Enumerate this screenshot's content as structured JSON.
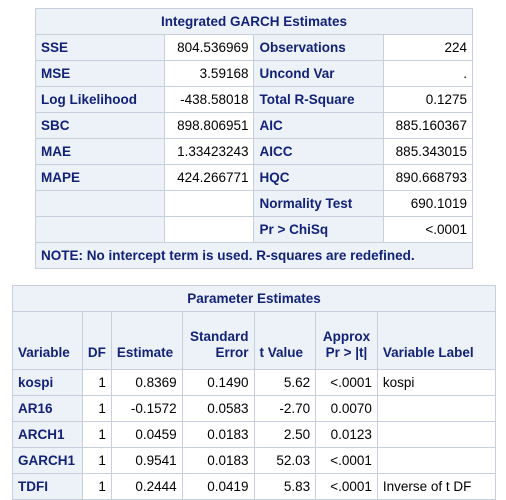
{
  "garch": {
    "title": "Integrated GARCH Estimates",
    "rows": [
      {
        "l1": "SSE",
        "v1": "804.536969",
        "l2": "Observations",
        "v2": "224"
      },
      {
        "l1": "MSE",
        "v1": "3.59168",
        "l2": "Uncond Var",
        "v2": "."
      },
      {
        "l1": "Log Likelihood",
        "v1": "-438.58018",
        "l2": "Total R-Square",
        "v2": "0.1275"
      },
      {
        "l1": "SBC",
        "v1": "898.806951",
        "l2": "AIC",
        "v2": "885.160367"
      },
      {
        "l1": "MAE",
        "v1": "1.33423243",
        "l2": "AICC",
        "v2": "885.343015"
      },
      {
        "l1": "MAPE",
        "v1": "424.266771",
        "l2": "HQC",
        "v2": "890.668793"
      },
      {
        "l1": "",
        "v1": "",
        "l2": "Normality Test",
        "v2": "690.1019"
      },
      {
        "l1": "",
        "v1": "",
        "l2": "Pr > ChiSq",
        "v2": "<.0001"
      }
    ],
    "note": "NOTE: No intercept term is used. R-squares are redefined."
  },
  "params": {
    "title": "Parameter Estimates",
    "headers": {
      "variable": "Variable",
      "df": "DF",
      "estimate": "Estimate",
      "stderr_1": "Standard",
      "stderr_2": "Error",
      "tvalue": "t Value",
      "pr_1": "Approx",
      "pr_2": "Pr > |t|",
      "label": "Variable Label"
    },
    "rows": [
      {
        "var": "kospi",
        "df": "1",
        "est": "0.8369",
        "se": "0.1490",
        "t": "5.62",
        "p": "<.0001",
        "label": "kospi"
      },
      {
        "var": "AR16",
        "df": "1",
        "est": "-0.1572",
        "se": "0.0583",
        "t": "-2.70",
        "p": "0.0070",
        "label": ""
      },
      {
        "var": "ARCH1",
        "df": "1",
        "est": "0.0459",
        "se": "0.0183",
        "t": "2.50",
        "p": "0.0123",
        "label": ""
      },
      {
        "var": "GARCH1",
        "df": "1",
        "est": "0.9541",
        "se": "0.0183",
        "t": "52.03",
        "p": "<.0001",
        "label": ""
      },
      {
        "var": "TDFI",
        "df": "1",
        "est": "0.2444",
        "se": "0.0419",
        "t": "5.83",
        "p": "<.0001",
        "label": "Inverse of t DF"
      }
    ]
  }
}
